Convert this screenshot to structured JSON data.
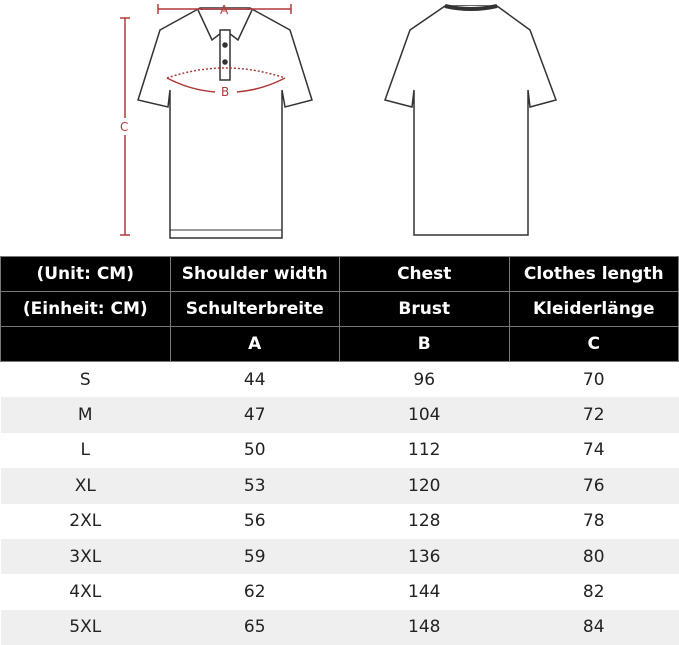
{
  "diagram": {
    "label_a": "A",
    "label_b": "B",
    "label_c": "C",
    "measure_color": "#b03a3a"
  },
  "table": {
    "header_rows": [
      [
        "(Unit: CM)",
        "Shoulder width",
        "Chest",
        "Clothes length"
      ],
      [
        "(Einheit: CM)",
        "Schulterbreite",
        "Brust",
        "Kleiderlänge"
      ],
      [
        "",
        "A",
        "B",
        "C"
      ]
    ],
    "rows": [
      [
        "S",
        "44",
        "96",
        "70"
      ],
      [
        "M",
        "47",
        "104",
        "72"
      ],
      [
        "L",
        "50",
        "112",
        "74"
      ],
      [
        "XL",
        "53",
        "120",
        "76"
      ],
      [
        "2XL",
        "56",
        "128",
        "78"
      ],
      [
        "3XL",
        "59",
        "136",
        "80"
      ],
      [
        "4XL",
        "62",
        "144",
        "82"
      ],
      [
        "5XL",
        "65",
        "148",
        "84"
      ]
    ]
  }
}
